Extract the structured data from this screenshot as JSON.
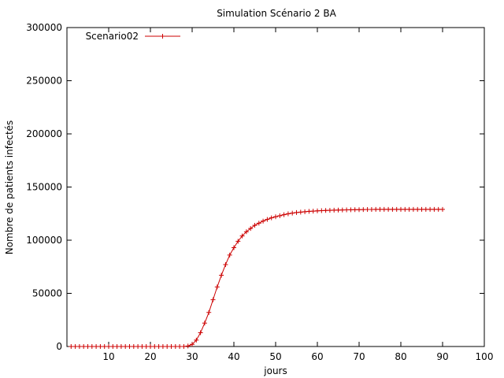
{
  "chart_data": {
    "type": "line",
    "title": "Simulation Scénario 2 BA",
    "xlabel": "jours",
    "ylabel": "Nombre de patients infectés",
    "xlim": [
      0,
      100
    ],
    "ylim": [
      0,
      300000
    ],
    "xticks": [
      10,
      20,
      30,
      40,
      50,
      60,
      70,
      80,
      90,
      100
    ],
    "yticks": [
      0,
      50000,
      100000,
      150000,
      200000,
      250000,
      300000
    ],
    "grid": false,
    "legend_position": "top-left",
    "series": [
      {
        "name": "Scenario02",
        "color": "#cc0000",
        "marker": "plus",
        "x": [
          1,
          2,
          3,
          4,
          5,
          6,
          7,
          8,
          9,
          10,
          11,
          12,
          13,
          14,
          15,
          16,
          17,
          18,
          19,
          20,
          21,
          22,
          23,
          24,
          25,
          26,
          27,
          28,
          29,
          30,
          31,
          32,
          33,
          34,
          35,
          36,
          37,
          38,
          39,
          40,
          41,
          42,
          43,
          44,
          45,
          46,
          47,
          48,
          49,
          50,
          51,
          52,
          53,
          54,
          55,
          56,
          57,
          58,
          59,
          60,
          61,
          62,
          63,
          64,
          65,
          66,
          67,
          68,
          69,
          70,
          71,
          72,
          73,
          74,
          75,
          76,
          77,
          78,
          79,
          80,
          81,
          82,
          83,
          84,
          85,
          86,
          87,
          88,
          89,
          90
        ],
        "y": [
          0,
          0,
          0,
          0,
          0,
          0,
          0,
          0,
          0,
          0,
          0,
          0,
          0,
          0,
          0,
          0,
          0,
          0,
          0,
          0,
          0,
          0,
          0,
          0,
          0,
          0,
          0,
          0,
          500,
          2000,
          6000,
          13000,
          22000,
          32000,
          44000,
          56000,
          67000,
          77000,
          86000,
          93000,
          99000,
          104000,
          108000,
          111000,
          114000,
          116000,
          118000,
          119500,
          121000,
          122000,
          123000,
          124000,
          124800,
          125500,
          126000,
          126400,
          126800,
          127100,
          127300,
          127600,
          127800,
          128000,
          128100,
          128200,
          128300,
          128400,
          128500,
          128600,
          128700,
          128750,
          128800,
          128850,
          128900,
          128950,
          129000,
          129000,
          129000,
          129000,
          129000,
          129000,
          129000,
          129000,
          129000,
          129000,
          129000,
          129000,
          129000,
          129000,
          129000,
          129000
        ]
      }
    ]
  }
}
